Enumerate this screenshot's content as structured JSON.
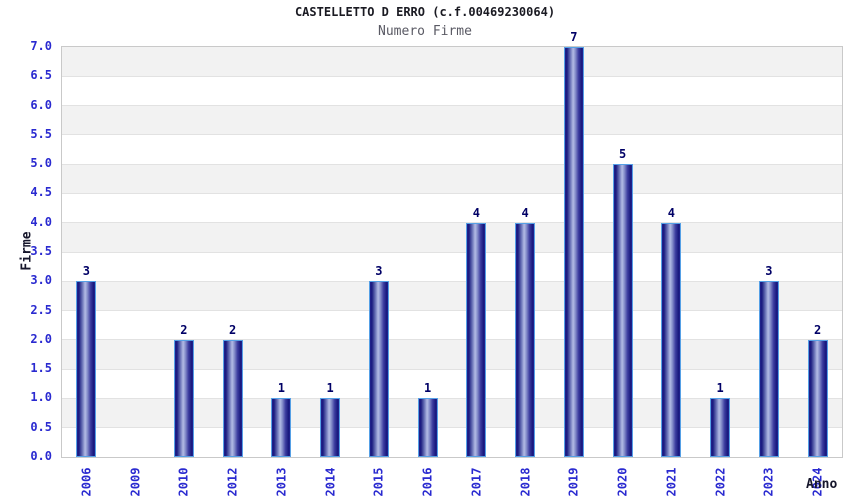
{
  "header": {
    "title": "CASTELLETTO D ERRO (c.f.00469230064)",
    "subtitle": "Numero Firme"
  },
  "chart_data": {
    "type": "bar",
    "title": "CASTELLETTO D ERRO (c.f.00469230064)",
    "subtitle": "Numero Firme",
    "xlabel": "Anno",
    "ylabel": "Firme",
    "categories": [
      "2006",
      "2009",
      "2010",
      "2012",
      "2013",
      "2014",
      "2015",
      "2016",
      "2017",
      "2018",
      "2019",
      "2020",
      "2021",
      "2022",
      "2023",
      "2024"
    ],
    "values": [
      3,
      0,
      2,
      2,
      1,
      1,
      3,
      1,
      4,
      4,
      7,
      5,
      4,
      1,
      3,
      2
    ],
    "ylim": [
      0,
      7
    ],
    "ytick_step": 0.5,
    "yticks": [
      "7.0",
      "6.5",
      "6.0",
      "5.5",
      "5.0",
      "4.5",
      "4.0",
      "3.5",
      "3.0",
      "2.5",
      "2.0",
      "1.5",
      "1.0",
      "0.5",
      "0.0"
    ],
    "legend": "none",
    "grid": "horizontal alternating bands, gray band between half-integer and integer levels",
    "value_labels_shown": true,
    "zero_values_unlabeled": true,
    "colors": {
      "tick_label": "#2a2ad0",
      "value_label": "#000066",
      "axis_title": "#16162b",
      "title": "#1a1a22",
      "subtitle": "#5a5a64",
      "band_gray": "#f2f2f2",
      "band_white": "#ffffff",
      "gridline": "#e2e2e2",
      "plot_border": "#c9c9c9",
      "bar_border": "#55a0e6",
      "bar_dark": "#18187d",
      "bar_mid": "#6b74b8",
      "bar_light": "#b3bbe5"
    }
  }
}
